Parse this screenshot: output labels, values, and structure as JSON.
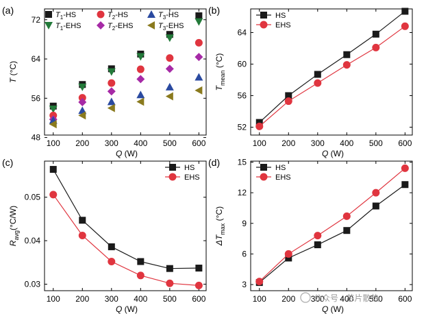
{
  "watermark": "公众号 · 芯片散热",
  "chart_data": [
    {
      "type": "scatter",
      "panel_label": "(a)",
      "xlabel": "Q (W)",
      "ylabel": "T (°C)",
      "xlim": [
        70,
        625
      ],
      "ylim": [
        48.5,
        74.2
      ],
      "xticks": [
        100,
        200,
        300,
        400,
        500,
        600
      ],
      "yticks": [
        48,
        56,
        64,
        72
      ],
      "legend_position": "top-left",
      "legend_columns": 3,
      "series": [
        {
          "name": "T1-HS",
          "sub": "1",
          "suffix": "-HS",
          "marker": "square",
          "color": "#1a1a1a",
          "x": [
            100,
            200,
            300,
            400,
            500,
            600
          ],
          "y": [
            54.4,
            58.8,
            62.0,
            65.0,
            69.0,
            72.8
          ]
        },
        {
          "name": "T1-EHS",
          "sub": "1",
          "suffix": "-EHS",
          "marker": "tri-down",
          "color": "#237a3a",
          "x": [
            100,
            200,
            300,
            400,
            500,
            600
          ],
          "y": [
            53.8,
            58.3,
            61.4,
            64.5,
            68.3,
            71.6
          ]
        },
        {
          "name": "T2-HS",
          "sub": "2",
          "suffix": "-HS",
          "marker": "circle",
          "color": "#e0353f",
          "x": [
            100,
            200,
            300,
            400,
            500,
            600
          ],
          "y": [
            52.5,
            56.1,
            59.1,
            61.9,
            64.2,
            67.3
          ]
        },
        {
          "name": "T2-EHS",
          "sub": "2",
          "suffix": "-EHS",
          "marker": "diamond",
          "color": "#a62aa6",
          "x": [
            100,
            200,
            300,
            400,
            500,
            600
          ],
          "y": [
            51.7,
            55.2,
            57.4,
            59.9,
            62.0,
            64.4
          ]
        },
        {
          "name": "T3-HS",
          "sub": "3",
          "suffix": "-HS",
          "marker": "tri-up",
          "color": "#2a4aa0",
          "x": [
            100,
            200,
            300,
            400,
            500,
            600
          ],
          "y": [
            51.5,
            53.5,
            55.3,
            56.7,
            58.3,
            60.3
          ]
        },
        {
          "name": "T3-EHS",
          "sub": "3",
          "suffix": "-EHS",
          "marker": "tri-left",
          "color": "#8a7a1e",
          "x": [
            100,
            200,
            300,
            400,
            500,
            600
          ],
          "y": [
            50.7,
            52.5,
            54.0,
            55.3,
            56.4,
            57.6
          ]
        }
      ]
    },
    {
      "type": "line",
      "panel_label": "(b)",
      "xlabel": "Q (W)",
      "ylabel": "Tmean (°C)",
      "xlim": [
        70,
        625
      ],
      "ylim": [
        51.0,
        67.0
      ],
      "xticks": [
        100,
        200,
        300,
        400,
        500,
        600
      ],
      "yticks": [
        52,
        56,
        60,
        64
      ],
      "legend_position": "top-left",
      "series": [
        {
          "name": "HS",
          "marker": "square",
          "color": "#1a1a1a",
          "x": [
            100,
            200,
            300,
            400,
            500,
            600
          ],
          "y": [
            52.6,
            56.0,
            58.7,
            61.2,
            63.8,
            66.7
          ]
        },
        {
          "name": "EHS",
          "marker": "circle",
          "color": "#e0353f",
          "x": [
            100,
            200,
            300,
            400,
            500,
            600
          ],
          "y": [
            52.1,
            55.3,
            57.6,
            59.9,
            62.1,
            64.8
          ]
        }
      ]
    },
    {
      "type": "line",
      "panel_label": "(c)",
      "xlabel": "Q (W)",
      "ylabel": "Ravg (°C/W)",
      "xlim": [
        70,
        625
      ],
      "ylim": [
        0.0285,
        0.0583
      ],
      "xticks": [
        100,
        200,
        300,
        400,
        500,
        600
      ],
      "yticks": [
        0.03,
        0.04,
        0.05
      ],
      "legend_position": "top-right",
      "series": [
        {
          "name": "HS",
          "marker": "square",
          "color": "#1a1a1a",
          "x": [
            100,
            200,
            300,
            400,
            500,
            600
          ],
          "y": [
            0.0564,
            0.0447,
            0.0386,
            0.0352,
            0.0336,
            0.0337
          ]
        },
        {
          "name": "EHS",
          "marker": "circle",
          "color": "#e0353f",
          "x": [
            100,
            200,
            300,
            400,
            500,
            600
          ],
          "y": [
            0.0506,
            0.0412,
            0.0352,
            0.032,
            0.0302,
            0.0297
          ]
        }
      ]
    },
    {
      "type": "line",
      "panel_label": "(d)",
      "xlabel": "Q (W)",
      "ylabel": "ΔTmax (°C)",
      "xlim": [
        70,
        625
      ],
      "ylim": [
        2.4,
        15.1
      ],
      "xticks": [
        100,
        200,
        300,
        400,
        500,
        600
      ],
      "yticks": [
        3,
        6,
        9,
        12,
        15
      ],
      "legend_position": "top-left",
      "series": [
        {
          "name": "HS",
          "marker": "square",
          "color": "#1a1a1a",
          "x": [
            100,
            200,
            300,
            400,
            500,
            600
          ],
          "y": [
            3.2,
            5.6,
            6.9,
            8.3,
            10.7,
            12.8
          ]
        },
        {
          "name": "EHS",
          "marker": "circle",
          "color": "#e0353f",
          "x": [
            100,
            200,
            300,
            400,
            500,
            600
          ],
          "y": [
            3.3,
            6.0,
            7.8,
            9.7,
            12.0,
            14.4
          ]
        }
      ]
    }
  ]
}
